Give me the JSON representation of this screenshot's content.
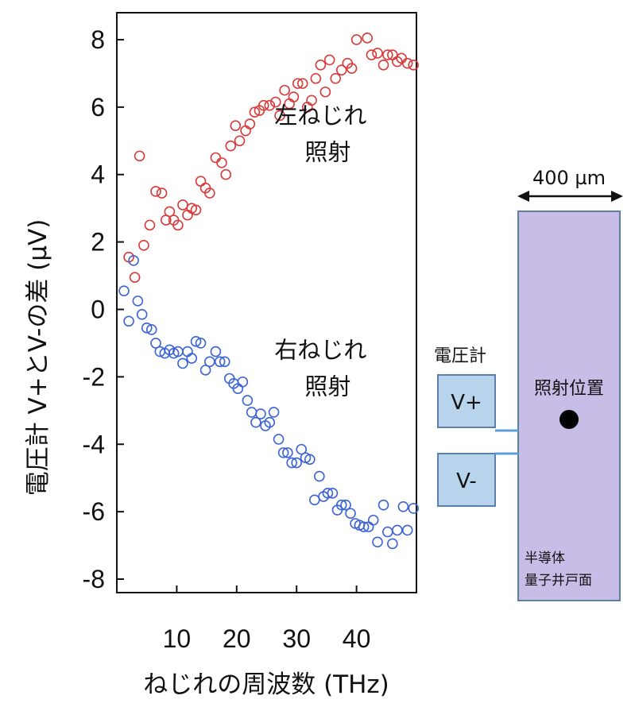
{
  "chart_data": {
    "type": "scatter",
    "xlabel": "ねじれの周波数 (THz)",
    "ylabel": "電圧計 V+とV-の差 (μV)",
    "xlim": [
      0,
      50
    ],
    "ylim": [
      -8.4,
      8.8
    ],
    "x_ticks": [
      10,
      20,
      30,
      40
    ],
    "y_ticks": [
      8,
      6,
      4,
      2,
      0,
      -2,
      -4,
      -6,
      -8
    ],
    "grid": false,
    "annotations": [
      {
        "line1": "左ねじれ",
        "line2": "照射",
        "x": 34.0,
        "y": 5.0
      },
      {
        "line1": "右ねじれ",
        "line2": "照射",
        "x": 34.0,
        "y": -1.95
      }
    ],
    "series": [
      {
        "color": "#d93a3a",
        "points": [
          [
            2.0,
            1.55
          ],
          [
            3.0,
            0.95
          ],
          [
            3.8,
            4.55
          ],
          [
            4.5,
            1.9
          ],
          [
            5.5,
            2.5
          ],
          [
            6.5,
            3.5
          ],
          [
            7.5,
            3.45
          ],
          [
            8.2,
            2.65
          ],
          [
            8.8,
            2.9
          ],
          [
            9.5,
            2.65
          ],
          [
            10.2,
            2.5
          ],
          [
            11.0,
            3.1
          ],
          [
            11.8,
            2.8
          ],
          [
            12.5,
            3.0
          ],
          [
            13.2,
            2.95
          ],
          [
            14.0,
            3.8
          ],
          [
            14.8,
            3.6
          ],
          [
            15.5,
            3.45
          ],
          [
            16.5,
            4.5
          ],
          [
            17.5,
            4.35
          ],
          [
            18.2,
            4.0
          ],
          [
            19.0,
            4.85
          ],
          [
            19.8,
            5.45
          ],
          [
            20.5,
            5.0
          ],
          [
            21.5,
            5.3
          ],
          [
            22.2,
            5.5
          ],
          [
            23.0,
            5.85
          ],
          [
            23.8,
            5.9
          ],
          [
            24.5,
            6.05
          ],
          [
            25.5,
            6.05
          ],
          [
            26.5,
            6.15
          ],
          [
            27.2,
            5.75
          ],
          [
            28.0,
            6.5
          ],
          [
            28.8,
            6.1
          ],
          [
            29.5,
            6.3
          ],
          [
            30.2,
            6.7
          ],
          [
            31.0,
            6.7
          ],
          [
            31.8,
            6.0
          ],
          [
            32.5,
            6.2
          ],
          [
            33.2,
            6.85
          ],
          [
            34.0,
            7.25
          ],
          [
            34.8,
            6.45
          ],
          [
            35.5,
            7.4
          ],
          [
            36.5,
            6.85
          ],
          [
            37.5,
            7.1
          ],
          [
            38.5,
            7.3
          ],
          [
            39.2,
            7.15
          ],
          [
            40.0,
            8.0
          ],
          [
            41.8,
            8.05
          ],
          [
            42.5,
            7.55
          ],
          [
            43.5,
            7.6
          ],
          [
            44.5,
            7.25
          ],
          [
            45.2,
            7.55
          ],
          [
            46.0,
            7.55
          ],
          [
            46.8,
            7.35
          ],
          [
            47.5,
            7.45
          ],
          [
            48.5,
            7.3
          ],
          [
            49.5,
            7.25
          ]
        ]
      },
      {
        "color": "#3b63d6",
        "points": [
          [
            1.2,
            0.55
          ],
          [
            2.0,
            -0.35
          ],
          [
            2.8,
            1.45
          ],
          [
            3.5,
            0.25
          ],
          [
            4.2,
            -0.15
          ],
          [
            5.0,
            -0.55
          ],
          [
            5.8,
            -0.6
          ],
          [
            6.5,
            -1.0
          ],
          [
            7.2,
            -1.25
          ],
          [
            8.0,
            -1.3
          ],
          [
            8.8,
            -1.2
          ],
          [
            9.5,
            -1.3
          ],
          [
            10.2,
            -1.25
          ],
          [
            11.0,
            -1.6
          ],
          [
            11.8,
            -1.25
          ],
          [
            12.5,
            -1.45
          ],
          [
            13.2,
            -0.95
          ],
          [
            14.0,
            -1.0
          ],
          [
            14.8,
            -1.8
          ],
          [
            15.5,
            -1.55
          ],
          [
            16.5,
            -1.25
          ],
          [
            17.2,
            -1.55
          ],
          [
            18.0,
            -1.55
          ],
          [
            18.8,
            -2.05
          ],
          [
            19.5,
            -2.2
          ],
          [
            20.2,
            -2.35
          ],
          [
            21.0,
            -2.15
          ],
          [
            21.8,
            -2.7
          ],
          [
            22.5,
            -3.05
          ],
          [
            23.2,
            -3.35
          ],
          [
            24.0,
            -3.1
          ],
          [
            24.8,
            -3.45
          ],
          [
            25.5,
            -3.35
          ],
          [
            26.2,
            -3.05
          ],
          [
            27.0,
            -3.85
          ],
          [
            27.8,
            -4.25
          ],
          [
            28.5,
            -4.25
          ],
          [
            29.2,
            -4.55
          ],
          [
            30.0,
            -4.55
          ],
          [
            30.8,
            -4.15
          ],
          [
            31.5,
            -4.4
          ],
          [
            32.2,
            -4.45
          ],
          [
            33.0,
            -5.65
          ],
          [
            33.8,
            -4.95
          ],
          [
            34.5,
            -5.55
          ],
          [
            35.2,
            -5.45
          ],
          [
            36.0,
            -5.45
          ],
          [
            36.8,
            -5.95
          ],
          [
            37.5,
            -5.8
          ],
          [
            38.2,
            -5.8
          ],
          [
            39.0,
            -6.05
          ],
          [
            39.8,
            -6.35
          ],
          [
            40.5,
            -6.4
          ],
          [
            41.2,
            -6.45
          ],
          [
            42.0,
            -6.45
          ],
          [
            42.8,
            -6.25
          ],
          [
            43.5,
            -6.9
          ],
          [
            44.5,
            -5.8
          ],
          [
            45.2,
            -6.6
          ],
          [
            46.0,
            -6.95
          ],
          [
            46.8,
            -6.55
          ],
          [
            47.8,
            -5.85
          ],
          [
            48.5,
            -6.55
          ],
          [
            49.5,
            -5.9
          ]
        ]
      }
    ]
  },
  "diagram": {
    "width_label": "400 µm",
    "voltmeter_label": "電圧計",
    "v_plus_label": "V+",
    "v_minus_label": "V-",
    "spot_label": "照射位置",
    "material_line1": "半導体",
    "material_line2": "量子井戸面",
    "sample_color": "#c8bde6",
    "electrode_color": "#b8d4ec",
    "border_color": "#5b7fa8",
    "wire_color": "#5b9fd6"
  }
}
